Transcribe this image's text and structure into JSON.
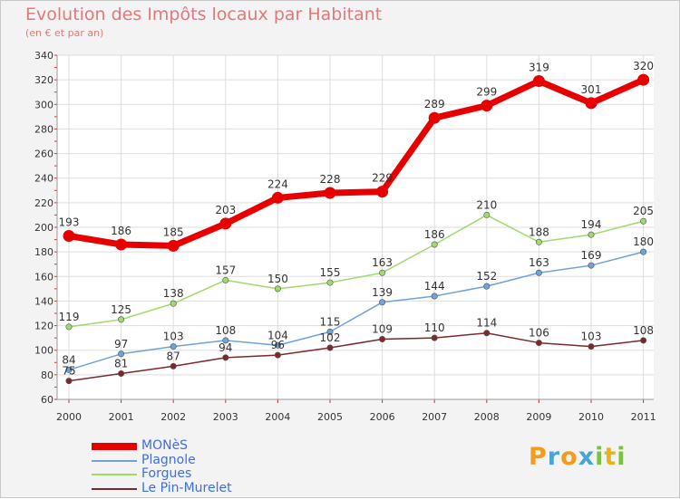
{
  "header": {
    "title": "Evolution des Impôts locaux par Habitant",
    "subtitle": "(en € et par an)"
  },
  "logo": {
    "letters": [
      "P",
      "r",
      "o",
      "x",
      "i",
      "t",
      "i"
    ],
    "colors": [
      "#f29b1d",
      "#4ba3d6",
      "#f29b1d",
      "#4ba3d6",
      "#7ac143",
      "#e8b21b",
      "#7ac143"
    ]
  },
  "chart_data": {
    "type": "line",
    "x": [
      "2000",
      "2001",
      "2002",
      "2003",
      "2004",
      "2005",
      "2006",
      "2007",
      "2008",
      "2009",
      "2010",
      "2011"
    ],
    "ylim": [
      60,
      340
    ],
    "yticks": [
      "60",
      "80",
      "100",
      "120",
      "140",
      "160",
      "180",
      "200",
      "220",
      "240",
      "260",
      "280",
      "300",
      "320",
      "340"
    ],
    "grid": true,
    "legend": "bottom-left",
    "series": [
      {
        "name": "MONèS",
        "color": "#e80000",
        "values": [
          193,
          186,
          185,
          203,
          224,
          228,
          229,
          289,
          299,
          319,
          301,
          320
        ],
        "labels": [
          "193",
          "186",
          "185",
          "203",
          "224",
          "228",
          "229",
          "289",
          "299",
          "319",
          "301",
          "320"
        ]
      },
      {
        "name": "Plagnole",
        "color": "#6fa3d8",
        "values": [
          84,
          97,
          103,
          108,
          104,
          115,
          139,
          144,
          152,
          163,
          169,
          180
        ],
        "labels": [
          "84",
          "97",
          "103",
          "108",
          "104",
          "115",
          "139",
          "144",
          "152",
          "163",
          "169",
          "180"
        ]
      },
      {
        "name": "Forgues",
        "color": "#9edb6d",
        "values": [
          119,
          125,
          138,
          157,
          150,
          155,
          163,
          186,
          210,
          188,
          194,
          205
        ],
        "labels": [
          "119",
          "125",
          "138",
          "157",
          "150",
          "155",
          "163",
          "186",
          "210",
          "188",
          "194",
          "205"
        ]
      },
      {
        "name": "Le Pin-Murelet",
        "color": "#7a2a2a",
        "values": [
          75,
          81,
          87,
          94,
          96,
          102,
          109,
          110,
          114,
          106,
          103,
          108
        ],
        "labels": [
          "75",
          "81",
          "87",
          "94",
          "96",
          "102",
          "109",
          "110",
          "114",
          "106",
          "103",
          "108"
        ]
      }
    ]
  }
}
